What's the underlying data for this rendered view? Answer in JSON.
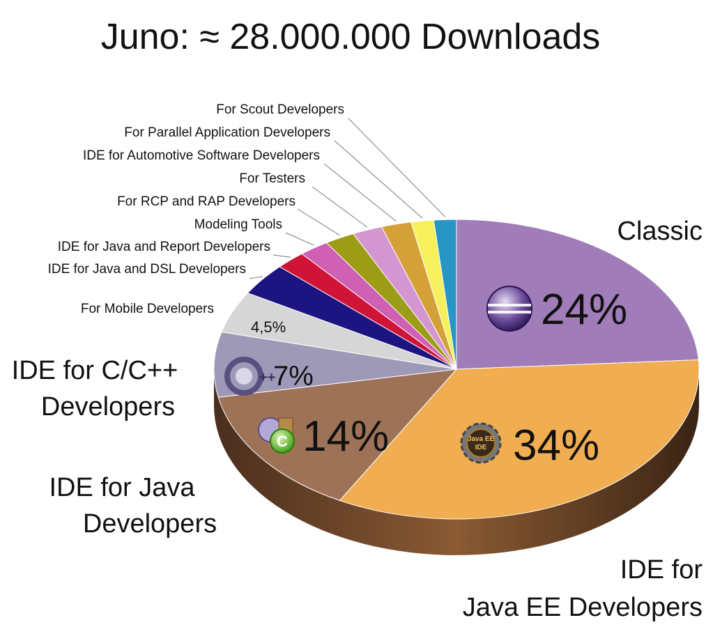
{
  "chart_data": {
    "type": "pie",
    "title": "Juno:  ≈ 28.000.000 Downloads",
    "slices": [
      {
        "label": "Classic",
        "value": 24,
        "value_label": "24%",
        "color": "#a07cb8"
      },
      {
        "label": "IDE for Java EE Developers",
        "value": 34,
        "value_label": "34%",
        "color": "#f0ad52"
      },
      {
        "label": "IDE for Java Developers",
        "value": 14,
        "value_label": "14%",
        "color": "#9e7257"
      },
      {
        "label": "IDE for C/C++ Developers",
        "value": 7,
        "value_label": "7%",
        "color": "#9e99b6"
      },
      {
        "label": "For Mobile Developers",
        "value": 4.5,
        "value_label": "4,5%",
        "color": "#d6d6d6"
      },
      {
        "label": "IDE for Java and DSL Developers",
        "value": 3.5,
        "color": "#1c1480"
      },
      {
        "label": "IDE for Java and Report Developers",
        "value": 2.0,
        "color": "#d01438"
      },
      {
        "label": "Modeling Tools",
        "value": 2.0,
        "color": "#d060b4"
      },
      {
        "label": "For RCP and RAP Developers",
        "value": 2.0,
        "color": "#9c9c16"
      },
      {
        "label": "For Testers",
        "value": 2.0,
        "color": "#d496d0"
      },
      {
        "label": "IDE for Automotive Software Developers",
        "value": 2.0,
        "color": "#d4a038"
      },
      {
        "label": "For Parallel Application Developers",
        "value": 1.5,
        "color": "#f6f05c"
      },
      {
        "label": "For Scout Developers",
        "value": 1.5,
        "color": "#2896c4"
      }
    ],
    "legend": "none"
  },
  "labels": {
    "classic": "Classic",
    "javaee_line1": "IDE for",
    "javaee_line2": "Java EE Developers",
    "java_line1": "IDE for Java",
    "java_line2": "Developers",
    "cpp_line1": "IDE for C/C++",
    "cpp_line2": "Developers"
  },
  "icons": [
    "eclipse-icon",
    "java-ee-ide-icon",
    "java-ide-icon",
    "cpp-icon"
  ]
}
